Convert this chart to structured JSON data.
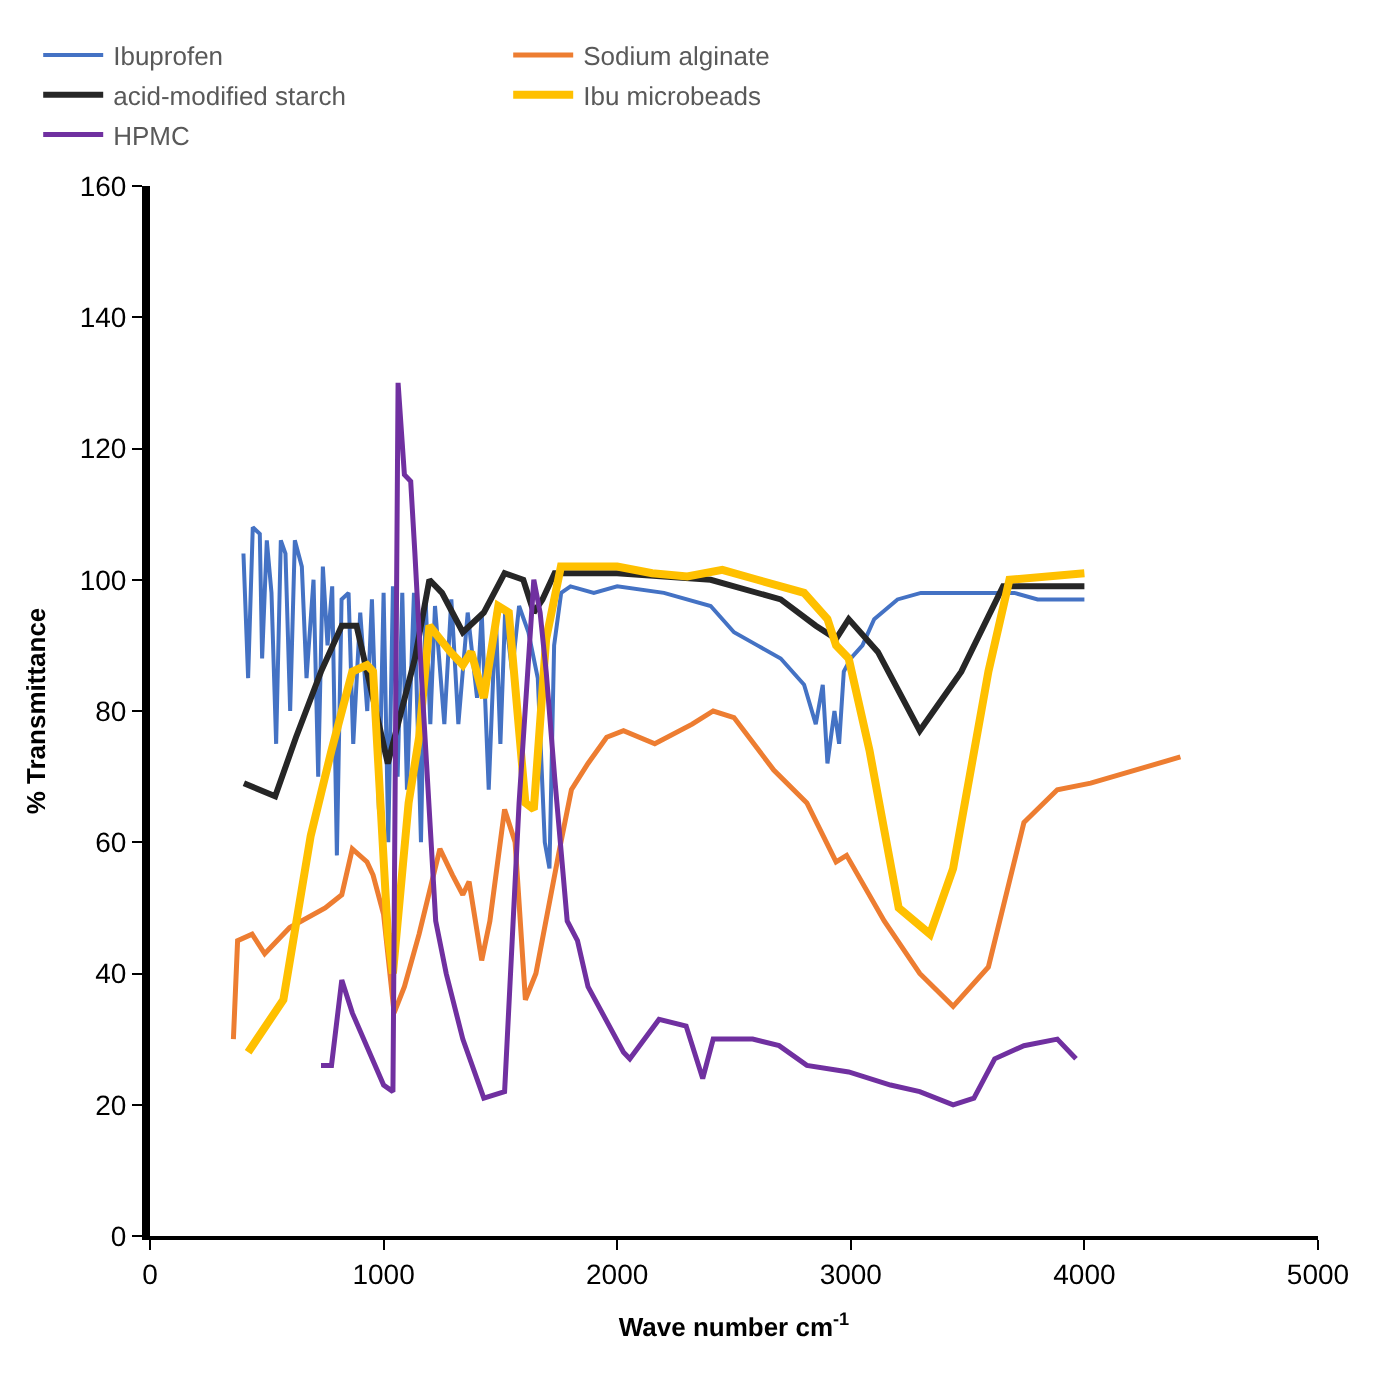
{
  "chart_data": {
    "type": "line",
    "xlabel": "Wave number cm$^{-1}$",
    "ylabel": "% Transmittance",
    "xlim": [
      0,
      5000
    ],
    "ylim": [
      0,
      160
    ],
    "xticks": [
      0,
      1000,
      2000,
      3000,
      4000,
      5000
    ],
    "yticks": [
      0,
      20,
      40,
      60,
      80,
      100,
      120,
      140,
      160
    ],
    "legend": "top",
    "marker": "none",
    "line_style": "solid",
    "series": [
      {
        "name": "Ibuprofen",
        "color": "#4472c4",
        "x": [
          400,
          420,
          440,
          470,
          480,
          500,
          520,
          540,
          560,
          580,
          600,
          620,
          650,
          670,
          700,
          720,
          740,
          760,
          780,
          800,
          820,
          850,
          870,
          900,
          930,
          950,
          980,
          1000,
          1020,
          1040,
          1060,
          1080,
          1100,
          1130,
          1160,
          1180,
          1200,
          1220,
          1260,
          1290,
          1320,
          1360,
          1400,
          1420,
          1450,
          1480,
          1500,
          1520,
          1550,
          1580,
          1620,
          1660,
          1690,
          1710,
          1730,
          1760,
          1800,
          1900,
          2000,
          2200,
          2400,
          2500,
          2600,
          2700,
          2800,
          2850,
          2880,
          2900,
          2930,
          2950,
          2970,
          3000,
          3050,
          3100,
          3200,
          3300,
          3500,
          3700,
          3800,
          4000
        ],
        "values": [
          104,
          85,
          108,
          107,
          88,
          106,
          98,
          75,
          106,
          104,
          80,
          106,
          102,
          85,
          100,
          70,
          102,
          90,
          99,
          58,
          97,
          98,
          75,
          95,
          80,
          97,
          65,
          98,
          60,
          99,
          70,
          98,
          68,
          98,
          60,
          97,
          78,
          96,
          78,
          97,
          78,
          95,
          82,
          95,
          68,
          95,
          75,
          95,
          86,
          96,
          92,
          85,
          60,
          56,
          90,
          98,
          99,
          98,
          99,
          98,
          96,
          92,
          90,
          88,
          84,
          78,
          84,
          72,
          80,
          75,
          86,
          88,
          90,
          94,
          97,
          98,
          98,
          98,
          97,
          97
        ]
      },
      {
        "name": "Sodium alginate",
        "color": "#ed7d31",
        "x": [
          357,
          375,
          437,
          491,
          598,
          750,
          821,
          866,
          929,
          955,
          1000,
          1045,
          1089,
          1152,
          1241,
          1295,
          1339,
          1366,
          1420,
          1455,
          1518,
          1563,
          1607,
          1652,
          1759,
          1804,
          1875,
          1955,
          2027,
          2161,
          2321,
          2411,
          2500,
          2670,
          2812,
          2937,
          2982,
          3143,
          3295,
          3438,
          3589,
          3741,
          3884,
          4027,
          4411
        ],
        "values": [
          30,
          45,
          46,
          43,
          47,
          50,
          52,
          59,
          57,
          55,
          49,
          34,
          38,
          46,
          59,
          55,
          52,
          54,
          42,
          48,
          65,
          60,
          36,
          40,
          60,
          68,
          72,
          76,
          77,
          75,
          78,
          80,
          79,
          71,
          66,
          57,
          58,
          48,
          40,
          35,
          41,
          63,
          68,
          69,
          73
        ]
      },
      {
        "name": "acid-modified starch",
        "color": "#262626",
        "x": [
          402,
          536,
          625,
          732,
          821,
          884,
          929,
          1018,
          1134,
          1196,
          1250,
          1339,
          1429,
          1518,
          1598,
          1643,
          1680,
          1732,
          2000,
          2400,
          2700,
          2850,
          2937,
          2991,
          3116,
          3295,
          3473,
          3652,
          4000
        ],
        "values": [
          69,
          67,
          76,
          86,
          93,
          93,
          86,
          72,
          88,
          100,
          98,
          92,
          95,
          101,
          100,
          95,
          97,
          101,
          101,
          100,
          97,
          93,
          91,
          94,
          89,
          77,
          86,
          99,
          99
        ]
      },
      {
        "name": "Ibu microbeads",
        "color": "#ffc000",
        "x": [
          420,
          571,
          688,
          777,
          866,
          929,
          955,
          1018,
          1040,
          1107,
          1152,
          1196,
          1286,
          1339,
          1375,
          1429,
          1491,
          1536,
          1607,
          1643,
          1696,
          1759,
          2000,
          2150,
          2300,
          2450,
          2600,
          2800,
          2900,
          2937,
          2991,
          3080,
          3205,
          3339,
          3438,
          3589,
          3679,
          4000
        ],
        "values": [
          28,
          36,
          61,
          74,
          86,
          87,
          86,
          46,
          40,
          66,
          76,
          93,
          89,
          87,
          89,
          82,
          96,
          95,
          66,
          65,
          91,
          102,
          102,
          101,
          100.5,
          101.5,
          100,
          98,
          94,
          90,
          88,
          74,
          50,
          46,
          56,
          86,
          100,
          101
        ]
      },
      {
        "name": "HPMC",
        "color": "#7030a0",
        "x": [
          732,
          777,
          821,
          866,
          1000,
          1040,
          1062,
          1089,
          1116,
          1134,
          1161,
          1223,
          1268,
          1339,
          1429,
          1518,
          1580,
          1643,
          1670,
          1696,
          1732,
          1786,
          1830,
          1875,
          2027,
          2054,
          2179,
          2295,
          2366,
          2411,
          2580,
          2693,
          2812,
          2991,
          3170,
          3295,
          3438,
          3527,
          3616,
          3741,
          3884,
          3964
        ],
        "values": [
          26,
          26,
          39,
          34,
          23,
          22,
          130,
          116,
          115,
          104,
          86,
          48,
          40,
          30,
          21,
          22,
          66,
          100,
          95,
          86,
          70,
          48,
          45,
          38,
          28,
          27,
          33,
          32,
          24,
          30,
          30,
          29,
          26,
          25,
          23,
          22,
          20,
          21,
          27,
          29,
          30,
          27
        ]
      }
    ]
  }
}
